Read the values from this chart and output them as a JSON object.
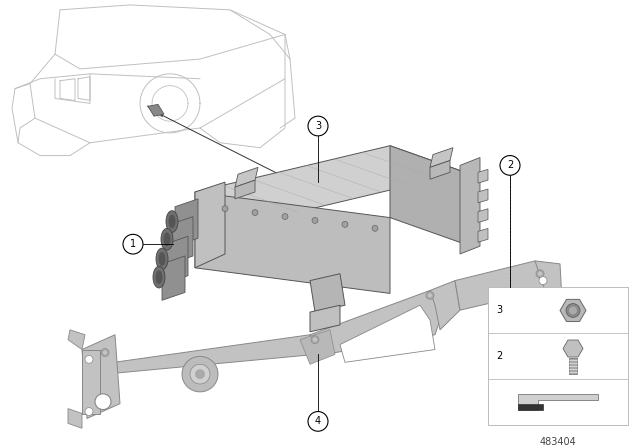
{
  "background_color": "#ffffff",
  "fig_width": 6.4,
  "fig_height": 4.48,
  "dpi": 100,
  "part_number": "483404",
  "line_color": "#000000",
  "dark_gray": "#555555",
  "mid_gray": "#888888",
  "light_gray": "#bbbbbb",
  "part_gray_light": "#c8c8c8",
  "part_gray_mid": "#aaaaaa",
  "part_gray_dark": "#888888",
  "car_line_color": "#c0c0c0"
}
